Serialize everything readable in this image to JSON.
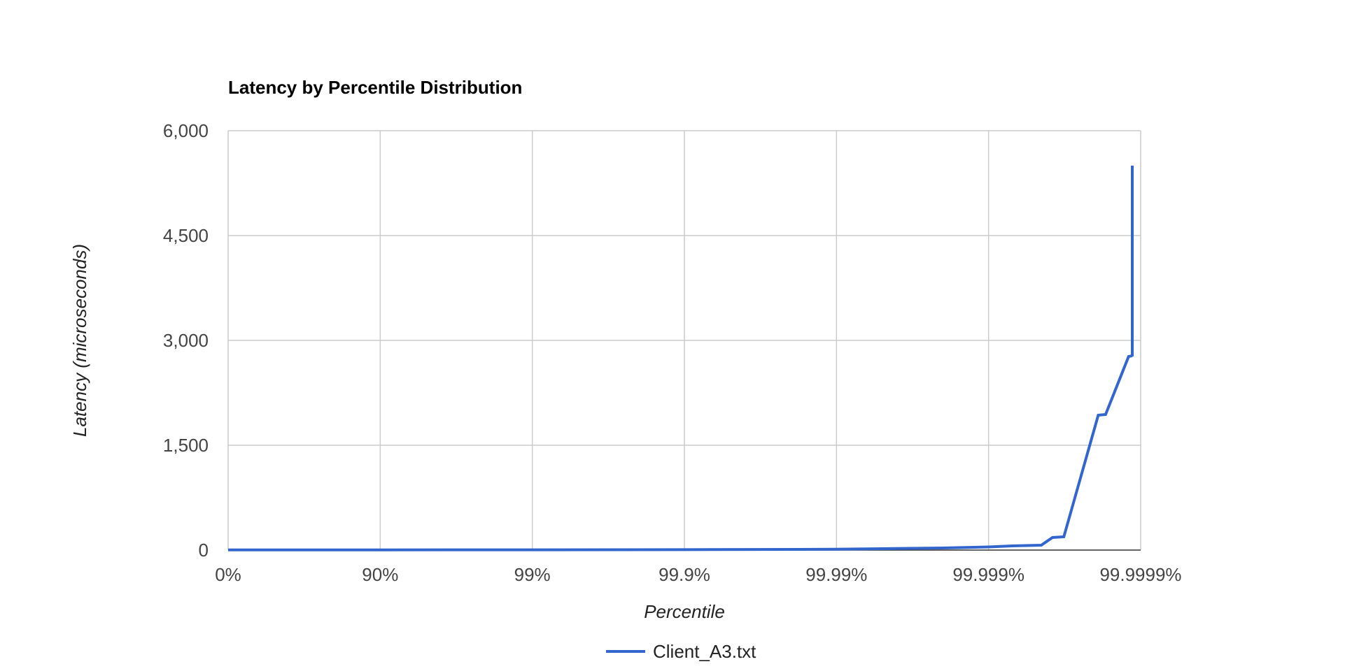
{
  "chart_data": {
    "type": "line",
    "title": "Latency by Percentile Distribution",
    "xlabel": "Percentile",
    "ylabel": "Latency (microseconds)",
    "x_scale": "inverse-log (1/(1-percentile))",
    "x_ticks": [
      "0%",
      "90%",
      "99%",
      "99.9%",
      "99.99%",
      "99.999%",
      "99.9999%"
    ],
    "y_ticks": [
      "0",
      "1,500",
      "3,000",
      "4,500",
      "6,000"
    ],
    "ylim": [
      0,
      6000
    ],
    "grid": true,
    "legend_position": "bottom",
    "series": [
      {
        "name": "Client_A3.txt",
        "color": "#3366cc",
        "x_percentile": [
          "0%",
          "90%",
          "99%",
          "99.9%",
          "99.99%",
          "99.995%",
          "99.998%",
          "99.999%",
          "99.9993%",
          "99.99955%",
          "99.99962%",
          "99.99968%",
          "99.99981%",
          "99.99983%",
          "99.99988%",
          "99.99990%",
          "99.99993%",
          "99.99994%",
          "99.999968%"
        ],
        "y": [
          2,
          3,
          4,
          6,
          12,
          20,
          30,
          45,
          60,
          70,
          180,
          190,
          1930,
          1940,
          2770,
          2780,
          2770,
          2775,
          5500
        ]
      }
    ]
  }
}
